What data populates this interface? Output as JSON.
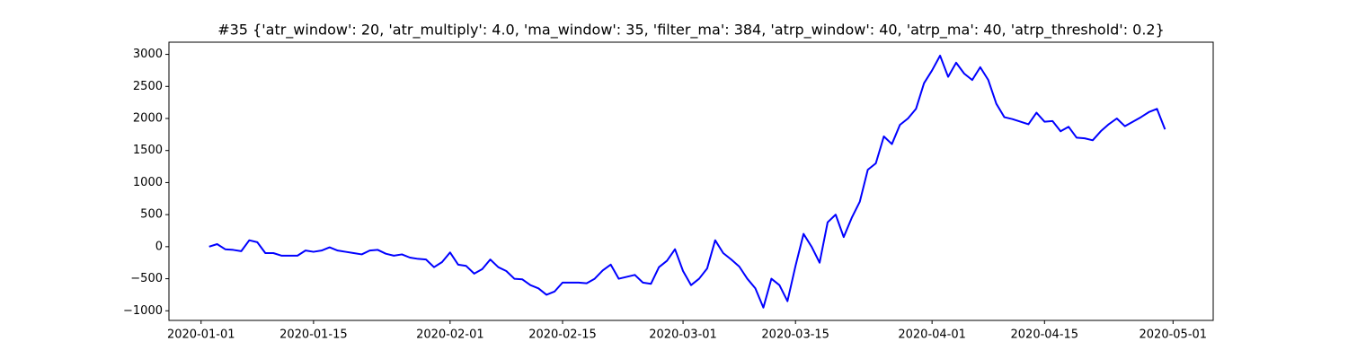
{
  "chart_data": {
    "type": "line",
    "title": "#35 {'atr_window': 20, 'atr_multiply': 4.0, 'ma_window': 35, 'filter_ma': 384, 'atrp_window': 40, 'atrp_ma': 40, 'atrp_threshold': 0.2}",
    "x": [
      "2020-01-02",
      "2020-01-03",
      "2020-01-04",
      "2020-01-05",
      "2020-01-06",
      "2020-01-07",
      "2020-01-08",
      "2020-01-09",
      "2020-01-10",
      "2020-01-11",
      "2020-01-12",
      "2020-01-13",
      "2020-01-14",
      "2020-01-15",
      "2020-01-16",
      "2020-01-17",
      "2020-01-18",
      "2020-01-19",
      "2020-01-20",
      "2020-01-21",
      "2020-01-22",
      "2020-01-23",
      "2020-01-24",
      "2020-01-25",
      "2020-01-26",
      "2020-01-27",
      "2020-01-28",
      "2020-01-29",
      "2020-01-30",
      "2020-01-31",
      "2020-02-01",
      "2020-02-02",
      "2020-02-03",
      "2020-02-04",
      "2020-02-05",
      "2020-02-06",
      "2020-02-07",
      "2020-02-08",
      "2020-02-09",
      "2020-02-10",
      "2020-02-11",
      "2020-02-12",
      "2020-02-13",
      "2020-02-14",
      "2020-02-15",
      "2020-02-16",
      "2020-02-17",
      "2020-02-18",
      "2020-02-19",
      "2020-02-20",
      "2020-02-21",
      "2020-02-22",
      "2020-02-23",
      "2020-02-24",
      "2020-02-25",
      "2020-02-26",
      "2020-02-27",
      "2020-02-28",
      "2020-02-29",
      "2020-03-01",
      "2020-03-02",
      "2020-03-03",
      "2020-03-04",
      "2020-03-05",
      "2020-03-06",
      "2020-03-07",
      "2020-03-08",
      "2020-03-09",
      "2020-03-10",
      "2020-03-11",
      "2020-03-12",
      "2020-03-13",
      "2020-03-14",
      "2020-03-15",
      "2020-03-16",
      "2020-03-17",
      "2020-03-18",
      "2020-03-19",
      "2020-03-20",
      "2020-03-21",
      "2020-03-22",
      "2020-03-23",
      "2020-03-24",
      "2020-03-25",
      "2020-03-26",
      "2020-03-27",
      "2020-03-28",
      "2020-03-29",
      "2020-03-30",
      "2020-03-31",
      "2020-04-01",
      "2020-04-02",
      "2020-04-03",
      "2020-04-04",
      "2020-04-05",
      "2020-04-06",
      "2020-04-07",
      "2020-04-08",
      "2020-04-09",
      "2020-04-10",
      "2020-04-11",
      "2020-04-12",
      "2020-04-13",
      "2020-04-14",
      "2020-04-15",
      "2020-04-16",
      "2020-04-17",
      "2020-04-18",
      "2020-04-19",
      "2020-04-20",
      "2020-04-21",
      "2020-04-22",
      "2020-04-23",
      "2020-04-24",
      "2020-04-25",
      "2020-04-26",
      "2020-04-27",
      "2020-04-28",
      "2020-04-29",
      "2020-04-30"
    ],
    "series": [
      {
        "color": "#0000ff",
        "values": [
          0,
          40,
          -40,
          -50,
          -70,
          100,
          70,
          -100,
          -100,
          -140,
          -140,
          -140,
          -60,
          -80,
          -60,
          -10,
          -60,
          -80,
          -100,
          -120,
          -60,
          -50,
          -110,
          -140,
          -120,
          -170,
          -190,
          -200,
          -320,
          -240,
          -90,
          -280,
          -300,
          -420,
          -350,
          -200,
          -320,
          -380,
          -500,
          -510,
          -600,
          -650,
          -750,
          -700,
          -560,
          -560,
          -560,
          -570,
          -500,
          -370,
          -280,
          -500,
          -470,
          -440,
          -560,
          -580,
          -320,
          -220,
          -40,
          -380,
          -600,
          -500,
          -340,
          100,
          -100,
          -200,
          -310,
          -500,
          -650,
          -950,
          -500,
          -600,
          -850,
          -300,
          200,
          0,
          -250,
          380,
          500,
          150,
          450,
          700,
          1200,
          1300,
          1720,
          1600,
          1900,
          2000,
          2150,
          2550,
          2750,
          2980,
          2650,
          2870,
          2700,
          2600,
          2800,
          2600,
          2230,
          2020,
          1990,
          1950,
          1910,
          2090,
          1950,
          1960,
          1800,
          1870,
          1700,
          1690,
          1660,
          1800,
          1910,
          2000,
          1880,
          1950,
          2020,
          2100,
          2150,
          1830
        ]
      }
    ],
    "xlim": [
      "2019-12-28",
      "2020-05-06"
    ],
    "xticks": [
      "2020-01-01",
      "2020-01-15",
      "2020-02-01",
      "2020-02-15",
      "2020-03-01",
      "2020-03-15",
      "2020-04-01",
      "2020-04-15",
      "2020-05-01"
    ],
    "ylim": [
      -1150,
      3190
    ],
    "yticks": [
      {
        "value": -1000,
        "label": "−1000"
      },
      {
        "value": -500,
        "label": "−500"
      },
      0,
      500,
      1000,
      1500,
      2000,
      2500,
      3000
    ],
    "grid": false
  }
}
